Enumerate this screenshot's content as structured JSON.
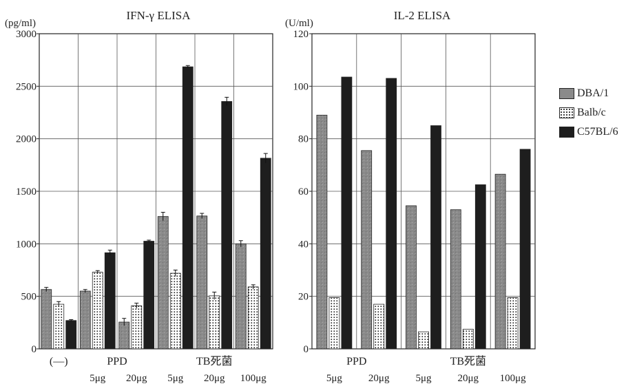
{
  "colors": {
    "DBA/1": "#8a8a8a",
    "Balb/c": "#ffffff",
    "C57BL/6": "#1e1e1e",
    "axis": "#222222",
    "grid": "#555555"
  },
  "chart_data": [
    {
      "type": "bar",
      "title": "IFN-γ ELISA",
      "unit_label": "(pg/ml)",
      "ylim": [
        0,
        3000
      ],
      "yticks": [
        0,
        500,
        1000,
        1500,
        2000,
        2500,
        3000
      ],
      "grid": true,
      "categories": [
        "(—)",
        "5μg",
        "20μg",
        "5μg",
        "20μg",
        "100μg"
      ],
      "group_labels": [
        {
          "label": "(—)",
          "span": [
            0,
            0
          ]
        },
        {
          "label": "PPD",
          "span": [
            1,
            2
          ]
        },
        {
          "label": "TB死菌",
          "span": [
            3,
            5
          ]
        }
      ],
      "series": [
        {
          "name": "DBA/1",
          "values": [
            565,
            550,
            255,
            1260,
            1265,
            1000
          ],
          "errors": [
            20,
            15,
            35,
            40,
            25,
            30
          ]
        },
        {
          "name": "Balb/c",
          "values": [
            425,
            730,
            410,
            720,
            505,
            590
          ],
          "errors": [
            25,
            15,
            25,
            30,
            35,
            20
          ]
        },
        {
          "name": "C57BL/6",
          "values": [
            270,
            915,
            1025,
            2685,
            2355,
            1815
          ],
          "errors": [
            8,
            25,
            10,
            12,
            40,
            45
          ]
        }
      ]
    },
    {
      "type": "bar",
      "title": "IL-2 ELISA",
      "unit_label": "(U/ml)",
      "ylim": [
        0,
        120
      ],
      "yticks": [
        0,
        20,
        40,
        60,
        80,
        100,
        120
      ],
      "grid": true,
      "categories": [
        "5μg",
        "20μg",
        "5μg",
        "20μg",
        "100μg"
      ],
      "group_labels": [
        {
          "label": "PPD",
          "span": [
            0,
            1
          ]
        },
        {
          "label": "TB死菌",
          "span": [
            2,
            4
          ]
        }
      ],
      "series": [
        {
          "name": "DBA/1",
          "values": [
            89,
            75.5,
            54.5,
            53,
            66.5
          ]
        },
        {
          "name": "Balb/c",
          "values": [
            19.5,
            17,
            6.5,
            7.5,
            19.5
          ]
        },
        {
          "name": "C57BL/6",
          "values": [
            103.5,
            103,
            85,
            62.5,
            76
          ]
        }
      ]
    }
  ],
  "legend": [
    {
      "name": "DBA/1"
    },
    {
      "name": "Balb/c"
    },
    {
      "name": "C57BL/6"
    }
  ]
}
